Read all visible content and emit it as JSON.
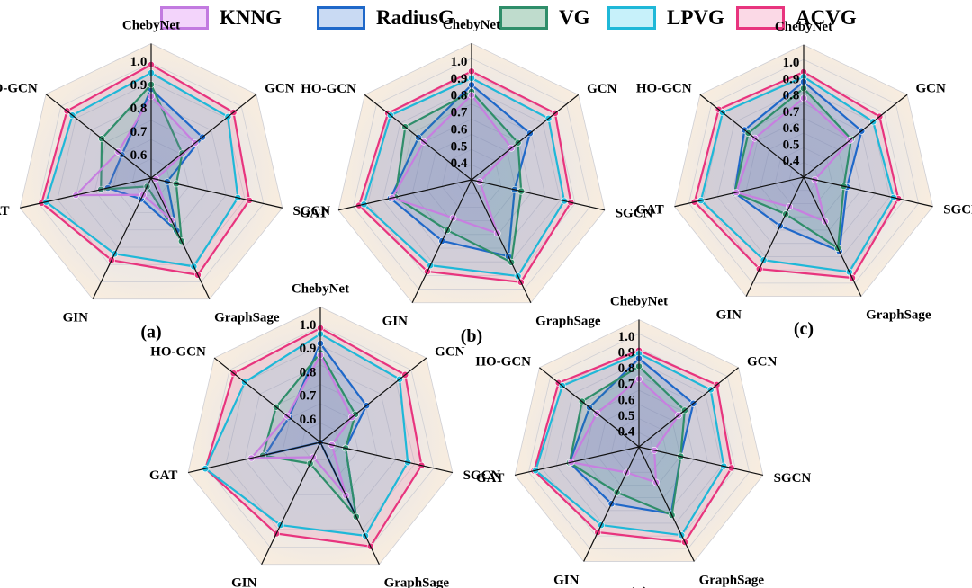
{
  "colors": {
    "KNNG": "#c77fe0",
    "RadiusG": "#1f68c9",
    "VG": "#2f8e6a",
    "LPVG": "#1fb8d8",
    "ACVG": "#e8347e"
  },
  "legend": [
    {
      "name": "KNNG",
      "fill": "#f3d4fb",
      "stroke": "#c27ae0"
    },
    {
      "name": "RadiusG",
      "fill": "#c9daf3",
      "stroke": "#1f68c9"
    },
    {
      "name": "VG",
      "fill": "#bfdccd",
      "stroke": "#2f8e6a"
    },
    {
      "name": "LPVG",
      "fill": "#c7f1fa",
      "stroke": "#1fb8d8"
    },
    {
      "name": "ACVG",
      "fill": "#fbd9e6",
      "stroke": "#e8347e"
    }
  ],
  "chart_data": [
    {
      "type": "radar",
      "panel_label": "(a)",
      "axes": [
        "ChebyNet",
        "GCN",
        "SGCN",
        "GraphSage",
        "GIN",
        "GAT",
        "HO-GCN"
      ],
      "ticks": [
        "0.6",
        "0.7",
        "0.8",
        "0.9",
        "1.0"
      ],
      "rmin": 0.5,
      "rmax": 1.0,
      "series": [
        {
          "name": "KNNG",
          "values": [
            0.85,
            0.74,
            0.52,
            0.7,
            0.58,
            0.83,
            0.68
          ]
        },
        {
          "name": "RadiusG",
          "values": [
            0.88,
            0.78,
            0.57,
            0.75,
            0.6,
            0.69,
            0.66
          ]
        },
        {
          "name": "VG",
          "values": [
            0.9,
            0.67,
            0.61,
            0.8,
            0.54,
            0.72,
            0.77
          ]
        },
        {
          "name": "LPVG",
          "values": [
            0.95,
            0.92,
            0.88,
            0.92,
            0.86,
            0.96,
            0.93
          ]
        },
        {
          "name": "ACVG",
          "values": [
            0.985,
            0.95,
            0.93,
            0.96,
            0.89,
            0.98,
            0.96
          ]
        }
      ]
    },
    {
      "type": "radar",
      "panel_label": "(b)",
      "axes": [
        "ChebyNet",
        "GCN",
        "SGCN",
        "GraphSage",
        "GIN",
        "GAT",
        "HO-GCN"
      ],
      "ticks": [
        "0.4",
        "0.5",
        "0.6",
        "0.7",
        "0.8",
        "0.9",
        "1.0"
      ],
      "rmin": 0.3,
      "rmax": 1.0,
      "series": [
        {
          "name": "KNNG",
          "values": [
            0.8,
            0.6,
            0.35,
            0.65,
            0.55,
            0.78,
            0.66
          ]
        },
        {
          "name": "RadiusG",
          "values": [
            0.86,
            0.74,
            0.56,
            0.8,
            0.7,
            0.79,
            0.7
          ]
        },
        {
          "name": "VG",
          "values": [
            0.82,
            0.65,
            0.6,
            0.84,
            0.63,
            0.76,
            0.8
          ]
        },
        {
          "name": "LPVG",
          "values": [
            0.9,
            0.88,
            0.86,
            0.93,
            0.86,
            0.95,
            0.91
          ]
        },
        {
          "name": "ACVG",
          "values": [
            0.94,
            0.93,
            0.9,
            0.97,
            0.9,
            0.98,
            0.93
          ]
        }
      ]
    },
    {
      "type": "radar",
      "panel_label": "(c)",
      "axes": [
        "ChebyNet",
        "GCN",
        "SGCN",
        "GraphSage",
        "GIN",
        "GAT",
        "HO-GCN"
      ],
      "ticks": [
        "0.4",
        "0.5",
        "0.6",
        "0.7",
        "0.8",
        "0.9",
        "1.0"
      ],
      "rmin": 0.3,
      "rmax": 1.0,
      "series": [
        {
          "name": "KNNG",
          "values": [
            0.78,
            0.66,
            0.37,
            0.6,
            0.5,
            0.72,
            0.68
          ]
        },
        {
          "name": "RadiusG",
          "values": [
            0.88,
            0.75,
            0.57,
            0.8,
            0.63,
            0.73,
            0.76
          ]
        },
        {
          "name": "VG",
          "values": [
            0.84,
            0.67,
            0.55,
            0.78,
            0.55,
            0.73,
            0.73
          ]
        },
        {
          "name": "LPVG",
          "values": [
            0.91,
            0.84,
            0.86,
            0.94,
            0.86,
            0.94,
            0.93
          ]
        },
        {
          "name": "ACVG",
          "values": [
            0.94,
            0.89,
            0.89,
            0.98,
            0.92,
            0.98,
            0.96
          ]
        }
      ]
    },
    {
      "type": "radar",
      "panel_label": "(d)",
      "axes": [
        "ChebyNet",
        "GCN",
        "SGCN",
        "GraphSage",
        "GIN",
        "GAT",
        "HO-GCN"
      ],
      "ticks": [
        "0.6",
        "0.7",
        "0.8",
        "0.9",
        "1.0"
      ],
      "rmin": 0.5,
      "rmax": 1.0,
      "series": [
        {
          "name": "KNNG",
          "values": [
            0.87,
            0.67,
            0.55,
            0.75,
            0.57,
            0.8,
            0.68
          ]
        },
        {
          "name": "RadiusG",
          "values": [
            0.92,
            0.75,
            0.61,
            0.85,
            0.5,
            0.74,
            0.67
          ]
        },
        {
          "name": "VG",
          "values": [
            0.88,
            0.69,
            0.61,
            0.85,
            0.6,
            0.75,
            0.74
          ]
        },
        {
          "name": "LPVG",
          "values": [
            0.96,
            0.93,
            0.88,
            0.94,
            0.89,
            1.0,
            0.91
          ]
        },
        {
          "name": "ACVG",
          "values": [
            0.985,
            0.96,
            0.94,
            0.99,
            0.93,
            1.0,
            0.97
          ]
        }
      ]
    },
    {
      "type": "radar",
      "panel_label": "(e)",
      "axes": [
        "ChebyNet",
        "GCN",
        "SGCN",
        "GraphSage",
        "GIN",
        "GAT",
        "HO-GCN"
      ],
      "ticks": [
        "0.4",
        "0.5",
        "0.6",
        "0.7",
        "0.8",
        "0.9",
        "1.0"
      ],
      "rmin": 0.3,
      "rmax": 1.0,
      "series": [
        {
          "name": "KNNG",
          "values": [
            0.73,
            0.62,
            0.4,
            0.55,
            0.48,
            0.74,
            0.64
          ]
        },
        {
          "name": "RadiusG",
          "values": [
            0.86,
            0.74,
            0.57,
            0.77,
            0.7,
            0.75,
            0.7
          ]
        },
        {
          "name": "VG",
          "values": [
            0.81,
            0.67,
            0.57,
            0.78,
            0.62,
            0.75,
            0.76
          ]
        },
        {
          "name": "LPVG",
          "values": [
            0.89,
            0.88,
            0.85,
            0.92,
            0.85,
            0.97,
            0.92
          ]
        },
        {
          "name": "ACVG",
          "values": [
            0.91,
            0.93,
            0.9,
            0.97,
            0.9,
            0.98,
            0.95
          ]
        }
      ]
    }
  ]
}
